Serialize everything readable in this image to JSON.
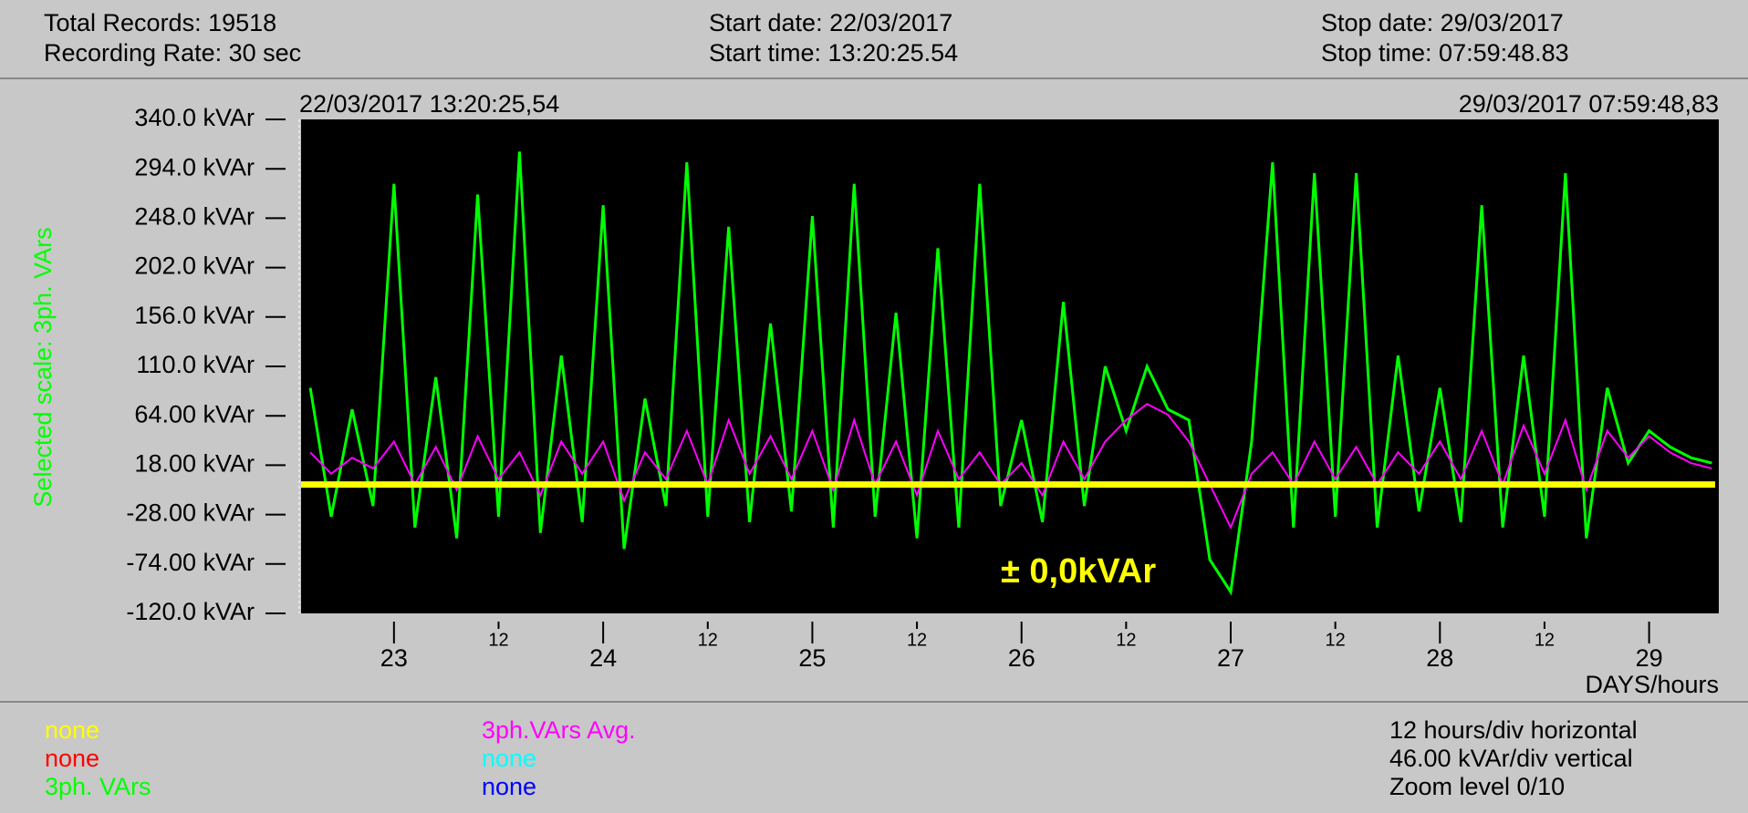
{
  "header": {
    "total_records": "Total Records: 19518",
    "recording_rate": "Recording Rate: 30 sec",
    "start_date": "Start date: 22/03/2017",
    "start_time": "Start time: 13:20:25.54",
    "stop_date": "Stop date: 29/03/2017",
    "stop_time": "Stop time: 07:59:48.83"
  },
  "chart_data": {
    "type": "line",
    "start_label": "22/03/2017 13:20:25,54",
    "end_label": "29/03/2017 07:59:48,83",
    "y_label": "Selected scale: 3ph. VArs",
    "x_label": "DAYS/hours",
    "annotation": "± 0,0kVAr",
    "reference_line": 0,
    "reference_color": "#ffff00",
    "xlim": [
      22.5559,
      29.3332
    ],
    "xticks": [
      23,
      {
        "value": 23.5,
        "label": "12"
      },
      24,
      {
        "value": 24.5,
        "label": "12"
      },
      25,
      {
        "value": 25.5,
        "label": "12"
      },
      26,
      {
        "value": 26.5,
        "label": "12"
      },
      27,
      {
        "value": 27.5,
        "label": "12"
      },
      28,
      {
        "value": 28.5,
        "label": "12"
      },
      29
    ],
    "ylim": [
      -120,
      340
    ],
    "yticks": [
      {
        "value": 340,
        "label": "340.0 kVAr"
      },
      {
        "value": 294,
        "label": "294.0 kVAr"
      },
      {
        "value": 248,
        "label": "248.0 kVAr"
      },
      {
        "value": 202,
        "label": "202.0 kVAr"
      },
      {
        "value": 156,
        "label": "156.0 kVAr"
      },
      {
        "value": 110,
        "label": "110.0 kVAr"
      },
      {
        "value": 64,
        "label": "64.00 kVAr"
      },
      {
        "value": 18,
        "label": "18.00 kVAr"
      },
      {
        "value": -28,
        "label": "-28.00 kVAr"
      },
      {
        "value": -74,
        "label": "-74.00 kVAr"
      },
      {
        "value": -120,
        "label": "-120.0 kVAr"
      }
    ],
    "x": [
      22.6,
      22.7,
      22.8,
      22.9,
      23.0,
      23.1,
      23.2,
      23.3,
      23.4,
      23.5,
      23.6,
      23.7,
      23.8,
      23.9,
      24.0,
      24.1,
      24.2,
      24.3,
      24.4,
      24.5,
      24.6,
      24.7,
      24.8,
      24.9,
      25.0,
      25.1,
      25.2,
      25.3,
      25.4,
      25.5,
      25.6,
      25.7,
      25.8,
      25.9,
      26.0,
      26.1,
      26.2,
      26.3,
      26.4,
      26.5,
      26.6,
      26.7,
      26.8,
      26.9,
      27.0,
      27.1,
      27.2,
      27.3,
      27.4,
      27.5,
      27.6,
      27.7,
      27.8,
      27.9,
      28.0,
      28.1,
      28.2,
      28.3,
      28.4,
      28.5,
      28.6,
      28.7,
      28.8,
      28.9,
      29.0,
      29.1,
      29.2,
      29.3
    ],
    "series": [
      {
        "name": "3ph. VArs",
        "color": "#00ff00",
        "values": [
          90,
          -30,
          70,
          -20,
          280,
          -40,
          100,
          -50,
          270,
          -30,
          310,
          -45,
          120,
          -35,
          260,
          -60,
          80,
          -20,
          300,
          -30,
          240,
          -35,
          150,
          -25,
          250,
          -40,
          280,
          -30,
          160,
          -50,
          220,
          -40,
          280,
          -20,
          60,
          -35,
          170,
          -20,
          110,
          50,
          110,
          70,
          60,
          -70,
          -100,
          40,
          300,
          -40,
          290,
          -30,
          290,
          -40,
          120,
          -25,
          90,
          -35,
          260,
          -40,
          120,
          -30,
          290,
          -50,
          90,
          20,
          50,
          35,
          25,
          20
        ]
      },
      {
        "name": "3ph.VArs Avg.",
        "color": "#ff00ff",
        "values": [
          30,
          10,
          25,
          15,
          40,
          0,
          35,
          -5,
          45,
          5,
          30,
          -10,
          40,
          10,
          40,
          -15,
          30,
          5,
          50,
          0,
          60,
          10,
          45,
          5,
          50,
          -5,
          60,
          0,
          40,
          -10,
          50,
          5,
          30,
          0,
          20,
          -10,
          40,
          5,
          40,
          60,
          75,
          65,
          40,
          0,
          -40,
          10,
          30,
          0,
          40,
          5,
          35,
          0,
          30,
          10,
          40,
          5,
          50,
          0,
          55,
          10,
          60,
          -5,
          50,
          25,
          45,
          30,
          20,
          15
        ]
      }
    ]
  },
  "legend": {
    "col1": [
      {
        "text": "none",
        "color": "#ffff00"
      },
      {
        "text": "none",
        "color": "#ff0000"
      },
      {
        "text": "3ph. VArs",
        "color": "#00ff00"
      }
    ],
    "col2": [
      {
        "text": "3ph.VArs Avg.",
        "color": "#ff00ff"
      },
      {
        "text": "none",
        "color": "#00ffff"
      },
      {
        "text": "none",
        "color": "#0000ff"
      }
    ]
  },
  "info": [
    "12 hours/div horizontal",
    "46.00 kVAr/div vertical",
    "Zoom level 0/10"
  ]
}
